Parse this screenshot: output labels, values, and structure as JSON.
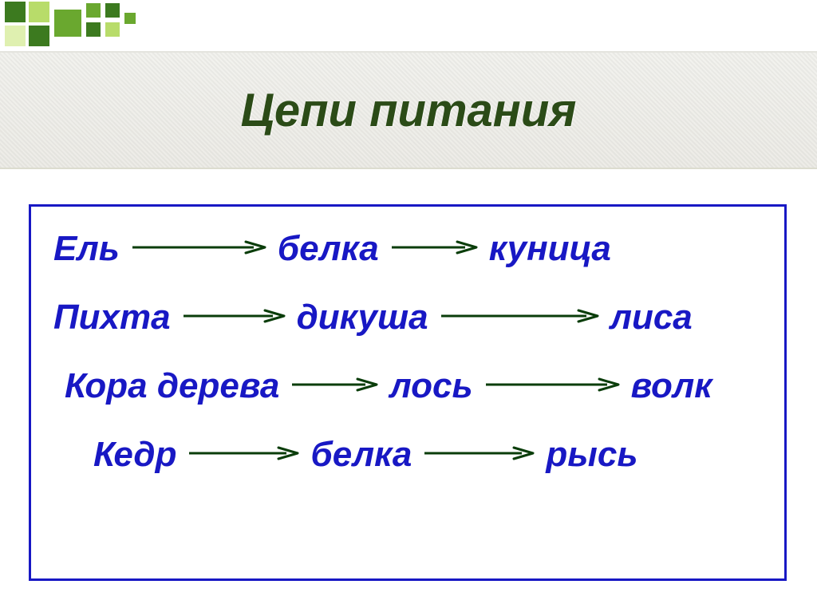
{
  "title": "Цепи питания",
  "colors": {
    "title_text": "#2b4b17",
    "word_text": "#1818c4",
    "box_border": "#1818c4",
    "arrow_stroke": "#0a3d0a",
    "deco_green_dark": "#3c7a1f",
    "deco_green_mid": "#6aa82f",
    "deco_green_light": "#b8dc6a",
    "deco_green_pale": "#dff0b0"
  },
  "chains": [
    {
      "indent": 10,
      "items": [
        "Ель",
        "белка",
        "куница"
      ],
      "arrow_widths": [
        170,
        110
      ]
    },
    {
      "indent": 10,
      "items": [
        "Пихта",
        "дикуша",
        "лиса"
      ],
      "arrow_widths": [
        130,
        200
      ]
    },
    {
      "indent": 24,
      "items": [
        "Кора дерева",
        "лось",
        "волк"
      ],
      "arrow_widths": [
        110,
        170
      ]
    },
    {
      "indent": 60,
      "items": [
        "Кедр",
        "белка",
        "рысь"
      ],
      "arrow_widths": [
        140,
        140
      ]
    }
  ],
  "fontsize": {
    "title": 58,
    "word": 44
  }
}
